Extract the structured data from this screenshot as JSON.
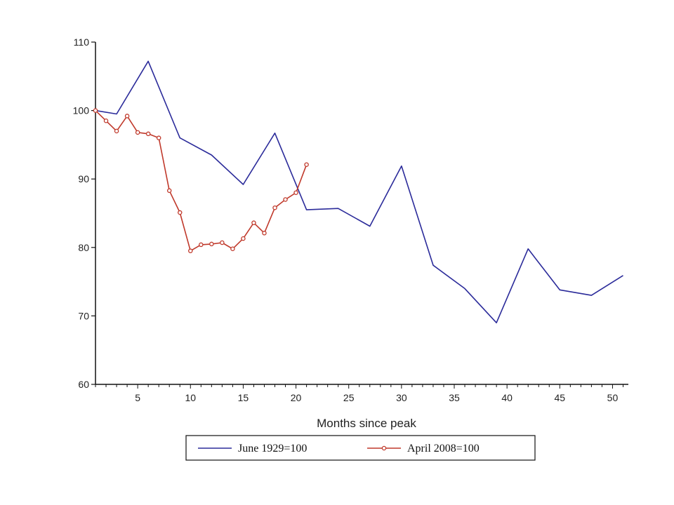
{
  "chart_data": {
    "type": "line",
    "title": "",
    "xlabel": "Months since peak",
    "ylabel": "",
    "xlim": [
      1,
      51.5
    ],
    "ylim": [
      60,
      110
    ],
    "x_ticks": [
      5,
      10,
      15,
      20,
      25,
      30,
      35,
      40,
      45,
      50
    ],
    "x_tick_labels": [
      "5",
      "10",
      "15",
      "20",
      "25",
      "30",
      "35",
      "40",
      "45",
      "50"
    ],
    "y_ticks": [
      60,
      70,
      80,
      90,
      100,
      110
    ],
    "y_tick_labels": [
      "60",
      "70",
      "80",
      "90",
      "100",
      "110"
    ],
    "grid": false,
    "legend_position": "bottom",
    "series": [
      {
        "name": "June 1929=100",
        "color": "#2b2b9a",
        "marker": "none",
        "x": [
          1,
          3,
          6,
          9,
          12,
          15,
          18,
          21,
          24,
          27,
          30,
          33,
          36,
          39,
          42,
          45,
          48,
          51
        ],
        "y": [
          100,
          99.5,
          107.2,
          96,
          93.5,
          89.2,
          96.7,
          85.5,
          85.7,
          83.1,
          91.9,
          77.4,
          74,
          69,
          79.8,
          73.8,
          73,
          75.9
        ]
      },
      {
        "name": "April 2008=100",
        "color": "#c0392b",
        "marker": "circle",
        "x": [
          1,
          2,
          3,
          4,
          5,
          6,
          7,
          8,
          9,
          10,
          11,
          12,
          13,
          14,
          15,
          16,
          17,
          18,
          19,
          20,
          21
        ],
        "y": [
          100,
          98.5,
          97,
          99.2,
          96.8,
          96.6,
          96,
          88.3,
          85.1,
          79.5,
          80.4,
          80.5,
          80.7,
          79.8,
          81.3,
          83.6,
          82.1,
          85.8,
          87,
          88,
          92.1
        ]
      }
    ]
  }
}
